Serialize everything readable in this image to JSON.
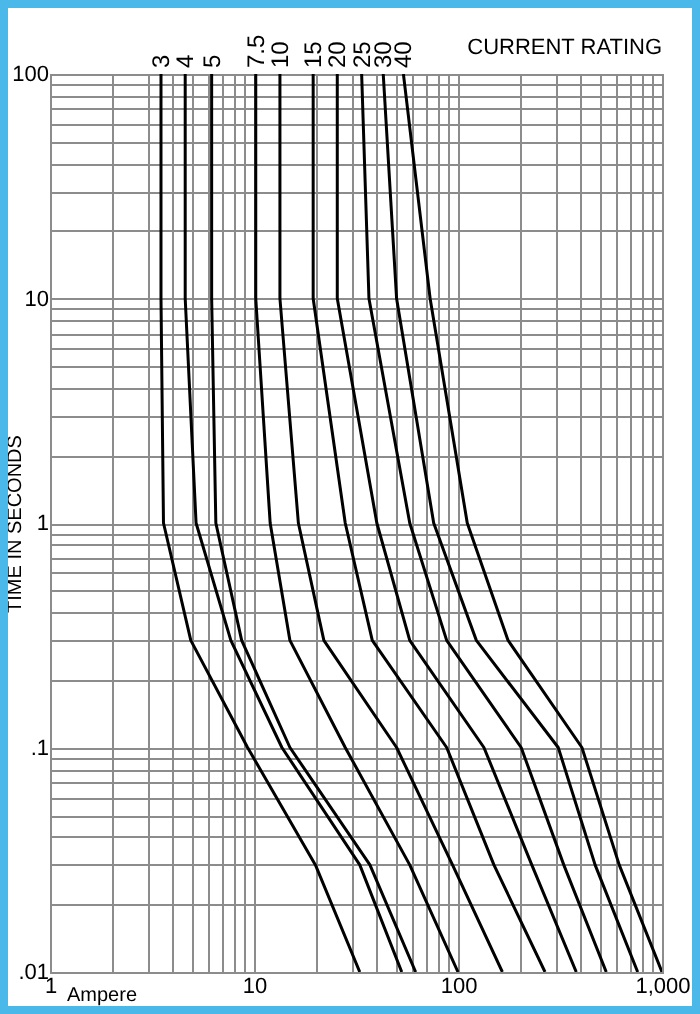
{
  "chart_data": {
    "type": "line",
    "legend_title": "CURRENT RATING",
    "xlabel": "Ampere",
    "ylabel": "TIME IN SECONDS",
    "log": "xy",
    "grid": true,
    "legend": false,
    "marker": "none",
    "line_style": "solid",
    "xlim": [
      1,
      1000
    ],
    "ylim": [
      0.01,
      100
    ],
    "xticks": [
      1,
      {
        "value": 2,
        "label": null
      },
      {
        "value": 3,
        "label": null
      },
      {
        "value": 4,
        "label": null
      },
      {
        "value": 5,
        "label": null
      },
      {
        "value": 6,
        "label": null
      },
      {
        "value": 7,
        "label": null
      },
      {
        "value": 8,
        "label": null
      },
      {
        "value": 9,
        "label": null
      },
      10,
      {
        "value": 20,
        "label": null
      },
      {
        "value": 30,
        "label": null
      },
      {
        "value": 40,
        "label": null
      },
      {
        "value": 50,
        "label": null
      },
      {
        "value": 60,
        "label": null
      },
      {
        "value": 70,
        "label": null
      },
      {
        "value": 80,
        "label": null
      },
      {
        "value": 90,
        "label": null
      },
      100,
      {
        "value": 200,
        "label": null
      },
      {
        "value": 300,
        "label": null
      },
      {
        "value": 400,
        "label": null
      },
      {
        "value": 500,
        "label": null
      },
      {
        "value": 600,
        "label": null
      },
      {
        "value": 700,
        "label": null
      },
      {
        "value": 800,
        "label": null
      },
      {
        "value": 900,
        "label": null
      },
      {
        "value": 1000,
        "label": "1,000"
      }
    ],
    "yticks": [
      {
        "value": 0.01,
        "label": ".01"
      },
      {
        "value": 0.02,
        "label": null
      },
      {
        "value": 0.03,
        "label": null
      },
      {
        "value": 0.04,
        "label": null
      },
      {
        "value": 0.05,
        "label": null
      },
      {
        "value": 0.06,
        "label": null
      },
      {
        "value": 0.07,
        "label": null
      },
      {
        "value": 0.08,
        "label": null
      },
      {
        "value": 0.09,
        "label": null
      },
      {
        "value": 0.1,
        "label": ".1"
      },
      {
        "value": 0.2,
        "label": null
      },
      {
        "value": 0.3,
        "label": null
      },
      {
        "value": 0.4,
        "label": null
      },
      {
        "value": 0.5,
        "label": null
      },
      {
        "value": 0.6,
        "label": null
      },
      {
        "value": 0.7,
        "label": null
      },
      {
        "value": 0.8,
        "label": null
      },
      {
        "value": 0.9,
        "label": null
      },
      1,
      {
        "value": 2,
        "label": null
      },
      {
        "value": 3,
        "label": null
      },
      {
        "value": 4,
        "label": null
      },
      {
        "value": 5,
        "label": null
      },
      {
        "value": 6,
        "label": null
      },
      {
        "value": 7,
        "label": null
      },
      {
        "value": 8,
        "label": null
      },
      {
        "value": 9,
        "label": null
      },
      10,
      {
        "value": 20,
        "label": null
      },
      {
        "value": 30,
        "label": null
      },
      {
        "value": 40,
        "label": null
      },
      {
        "value": 50,
        "label": null
      },
      {
        "value": 60,
        "label": null
      },
      {
        "value": 70,
        "label": null
      },
      {
        "value": 80,
        "label": null
      },
      {
        "value": 90,
        "label": null
      },
      100
    ],
    "series": [
      {
        "name": "3",
        "color": "#000000",
        "x": [
          3.5,
          3.5,
          3.6,
          4.9,
          9.3,
          20,
          33
        ],
        "values": [
          100,
          10,
          1,
          0.3,
          0.1,
          0.03,
          0.01
        ]
      },
      {
        "name": "4",
        "color": "#000000",
        "x": [
          4.6,
          4.6,
          5.2,
          7.7,
          13.7,
          33,
          53
        ],
        "values": [
          100,
          10,
          1,
          0.3,
          0.1,
          0.03,
          0.01
        ]
      },
      {
        "name": "5",
        "color": "#000000",
        "x": [
          6.2,
          6.2,
          6.5,
          8.7,
          15,
          37,
          62
        ],
        "values": [
          100,
          10,
          1,
          0.3,
          0.1,
          0.03,
          0.01
        ]
      },
      {
        "name": "7.5",
        "color": "#000000",
        "x": [
          10.2,
          10.2,
          12,
          15,
          28,
          58,
          100
        ],
        "values": [
          100,
          10,
          1,
          0.3,
          0.1,
          0.03,
          0.01
        ]
      },
      {
        "name": "10",
        "color": "#000000",
        "x": [
          13.4,
          13.4,
          16.5,
          22,
          50,
          94,
          165
        ],
        "values": [
          100,
          10,
          1,
          0.3,
          0.1,
          0.03,
          0.01
        ]
      },
      {
        "name": "15",
        "color": "#000000",
        "x": [
          19.5,
          19.5,
          28,
          38,
          88,
          150,
          267
        ],
        "values": [
          100,
          10,
          1,
          0.3,
          0.1,
          0.03,
          0.01
        ]
      },
      {
        "name": "20",
        "color": "#000000",
        "x": [
          25.6,
          25.6,
          40,
          58,
          134,
          230,
          380
        ],
        "values": [
          100,
          10,
          1,
          0.3,
          0.1,
          0.03,
          0.01
        ]
      },
      {
        "name": "25",
        "color": "#000000",
        "x": [
          33.7,
          36.6,
          58,
          88,
          204,
          330,
          533
        ],
        "values": [
          100,
          10,
          1,
          0.3,
          0.1,
          0.03,
          0.01
        ]
      },
      {
        "name": "30",
        "color": "#000000",
        "x": [
          43,
          50,
          76,
          123,
          310,
          470,
          760
        ],
        "values": [
          100,
          10,
          1,
          0.3,
          0.1,
          0.03,
          0.01
        ]
      },
      {
        "name": "40",
        "color": "#000000",
        "x": [
          54,
          73,
          111,
          176,
          405,
          617,
          1000
        ],
        "values": [
          100,
          10,
          1,
          0.3,
          0.1,
          0.03,
          0.01
        ]
      }
    ]
  }
}
